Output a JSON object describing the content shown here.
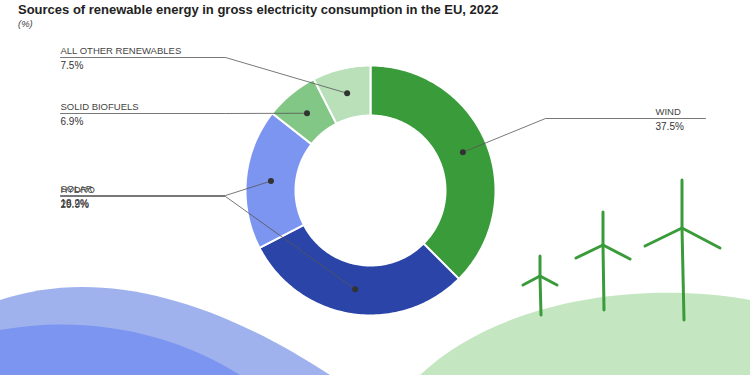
{
  "chart_data": {
    "type": "donut",
    "title": "Sources of renewable energy in gross electricity consumption in the EU, 2022",
    "subtitle": "(%)",
    "categories": [
      "WIND",
      "HYDRO",
      "SOLAR",
      "SOLID BIOFUELS",
      "ALL OTHER RENEWABLES"
    ],
    "values": [
      37.5,
      29.9,
      18.2,
      6.9,
      7.5
    ],
    "value_labels": [
      "37.5%",
      "29.9%",
      "18.2%",
      "6.9%",
      "7.5%"
    ],
    "colors": [
      "#3a9b3a",
      "#2a44a8",
      "#7b95f0",
      "#82c785",
      "#b9e0b9"
    ],
    "data_labels": true,
    "tick_labels": false
  }
}
